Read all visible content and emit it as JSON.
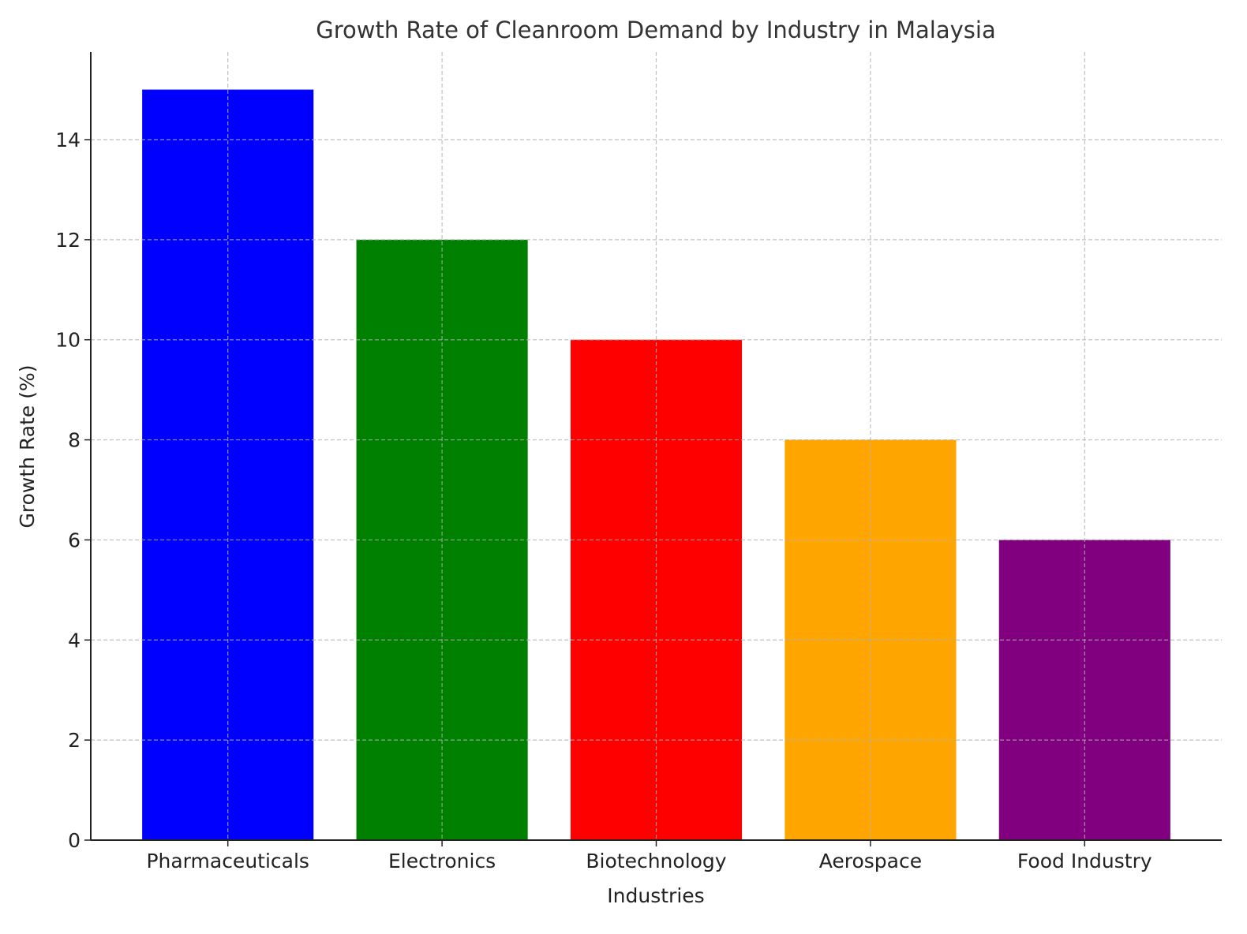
{
  "chart_data": {
    "type": "bar",
    "title": "Growth Rate of Cleanroom Demand by Industry in Malaysia",
    "xlabel": "Industries",
    "ylabel": "Growth Rate (%)",
    "categories": [
      "Pharmaceuticals",
      "Electronics",
      "Biotechnology",
      "Aerospace",
      "Food Industry"
    ],
    "values": [
      15,
      12,
      10,
      8,
      6
    ],
    "colors": [
      "#0000ff",
      "#008000",
      "#ff0000",
      "#ffa500",
      "#800080"
    ],
    "ylim": [
      0,
      15.75
    ],
    "yticks": [
      0,
      2,
      4,
      6,
      8,
      10,
      12,
      14
    ],
    "grid": true,
    "grid_style": "dashed",
    "legend": "none"
  }
}
